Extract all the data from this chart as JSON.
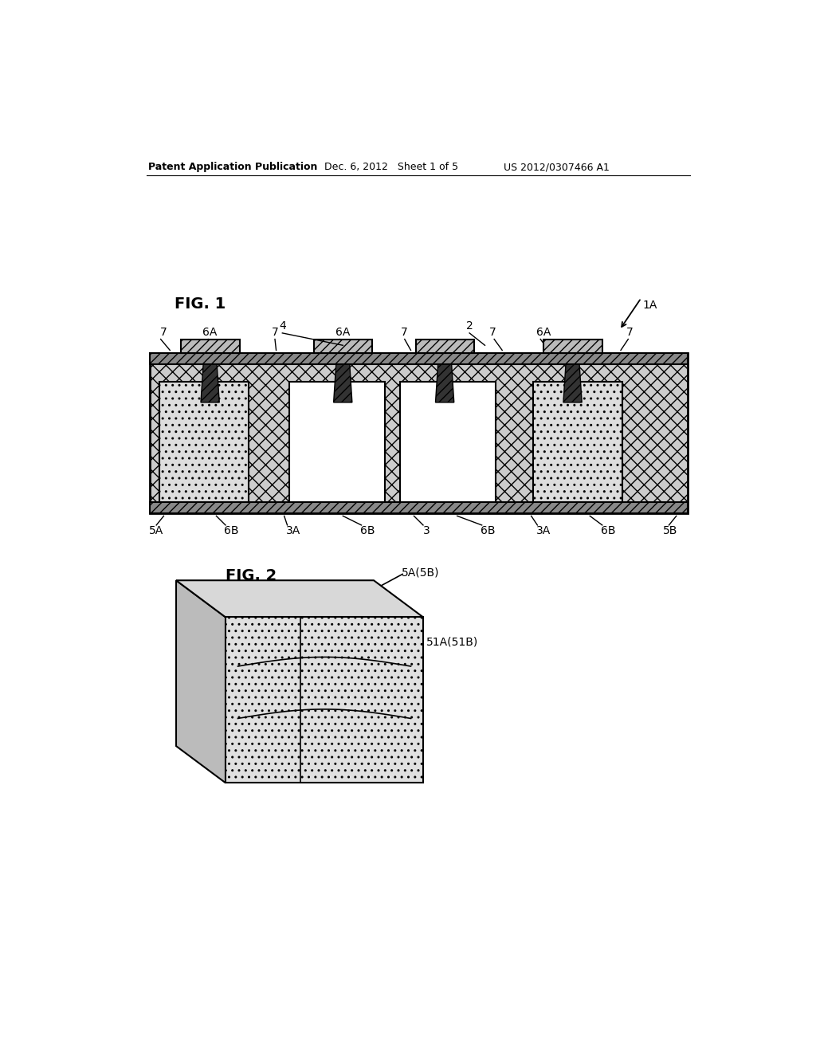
{
  "bg_color": "#ffffff",
  "fig_width": 10.24,
  "fig_height": 13.2,
  "header_text1": "Patent Application Publication",
  "header_text2": "Dec. 6, 2012   Sheet 1 of 5",
  "header_text3": "US 2012/0307466 A1",
  "fig1_label": "FIG. 1",
  "fig2_label": "FIG. 2",
  "label_1A": "1A",
  "label_2": "2",
  "label_3": "3",
  "label_3A": "3A",
  "label_4": "4",
  "label_5A": "5A",
  "label_5B": "5B",
  "label_6A": "6A",
  "label_6B": "6B",
  "label_7": "7",
  "label_51A": "51A(51B)",
  "label_5A5B": "5A(5B)",
  "hatch_main": "xx",
  "hatch_pad": "///",
  "hatch_bottom": "///",
  "color_main": "#cccccc",
  "color_pad": "#aaaaaa",
  "color_via": "#333333",
  "color_comp_light": "#dddddd",
  "color_comp_white": "#ffffff"
}
